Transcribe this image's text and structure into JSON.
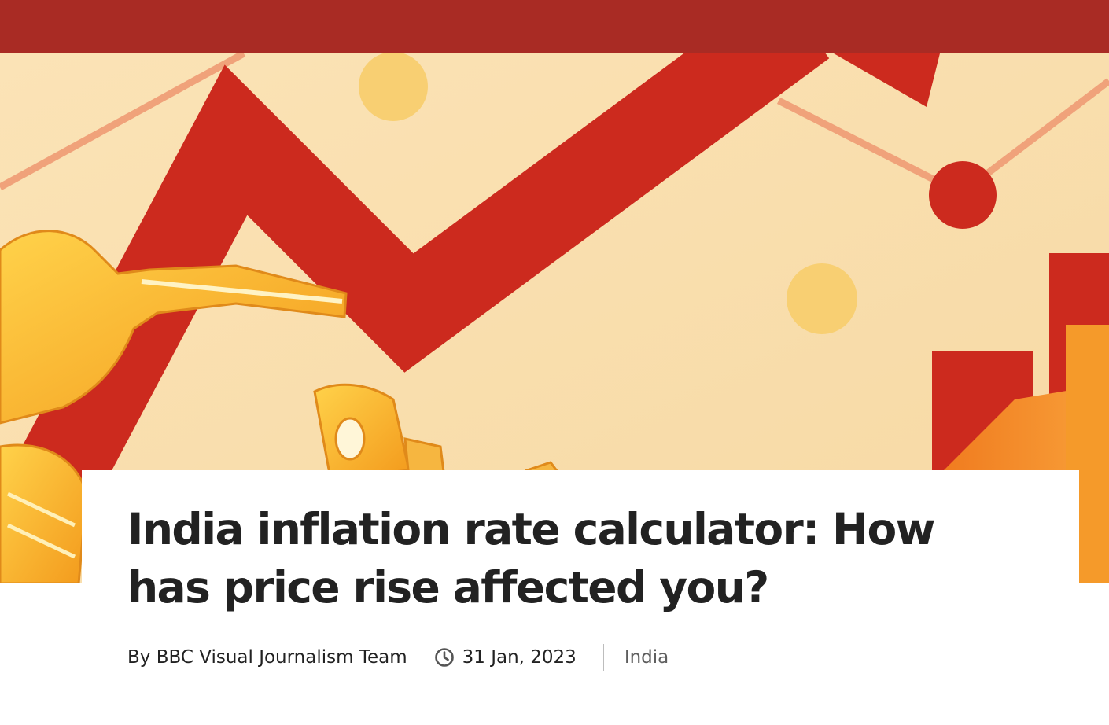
{
  "colors": {
    "header_bar": "#a92b24",
    "hero_background": "#fbe2b4",
    "hero_arrow": "#cc2a1e",
    "text_primary": "#222222",
    "text_secondary": "#5e5e5e"
  },
  "hero": {
    "illustration": "inflation-arrow-fuel-nozzle-illustration"
  },
  "article": {
    "headline": "India inflation rate calculator: How has price rise affected you?",
    "byline": "By BBC Visual Journalism Team",
    "date": "31 Jan, 2023",
    "date_icon": "clock-icon",
    "topic": "India"
  }
}
